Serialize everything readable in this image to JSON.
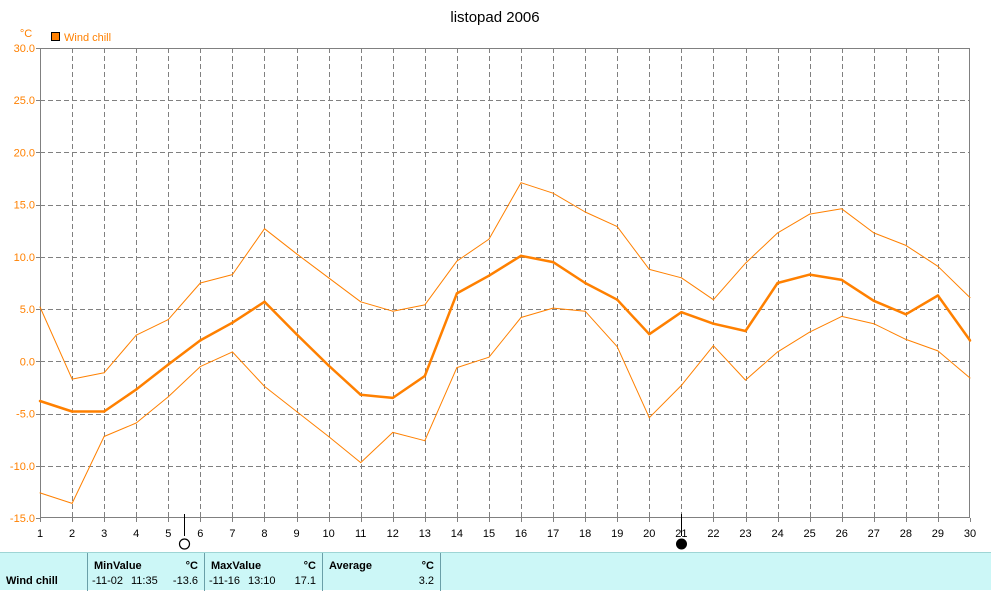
{
  "chart_data": {
    "type": "line",
    "title": "listopad 2006",
    "ylabel": "°C",
    "legend": {
      "label": "Wind chill",
      "color": "#ff8000",
      "placement": "top-left"
    },
    "grid": true,
    "xlim": [
      1,
      30
    ],
    "ylim": [
      -15,
      30
    ],
    "x_ticks": [
      1,
      2,
      3,
      4,
      5,
      6,
      7,
      8,
      9,
      10,
      11,
      12,
      13,
      14,
      15,
      16,
      17,
      18,
      19,
      20,
      21,
      22,
      23,
      24,
      25,
      26,
      27,
      28,
      29,
      30
    ],
    "y_ticks": [
      "-15.0",
      "-10.0",
      "-5.0",
      "0.0",
      "5.0",
      "10.0",
      "15.0",
      "20.0",
      "25.0",
      "30.0"
    ],
    "x": [
      1,
      2,
      3,
      4,
      5,
      6,
      7,
      8,
      9,
      10,
      11,
      12,
      13,
      14,
      15,
      16,
      17,
      18,
      19,
      20,
      21,
      22,
      23,
      24,
      25,
      26,
      27,
      28,
      29,
      30
    ],
    "series": [
      {
        "name": "Wind chill",
        "role": "max",
        "values": [
          5.2,
          -1.7,
          -1.1,
          2.5,
          4.0,
          7.5,
          8.3,
          12.7,
          10.3,
          8.0,
          5.7,
          4.8,
          5.4,
          9.6,
          11.7,
          17.1,
          16.1,
          14.3,
          12.9,
          8.8,
          8.0,
          5.9,
          9.4,
          12.3,
          14.1,
          14.6,
          12.3,
          11.1,
          9.1,
          6.1
        ]
      },
      {
        "name": "Wind chill",
        "role": "average",
        "values": [
          -3.8,
          -4.8,
          -4.8,
          -2.7,
          -0.3,
          2.0,
          3.7,
          5.7,
          2.6,
          -0.4,
          -3.2,
          -3.5,
          -1.4,
          6.5,
          8.2,
          10.1,
          9.5,
          7.5,
          5.9,
          2.6,
          4.7,
          3.6,
          2.9,
          7.5,
          8.3,
          7.8,
          5.8,
          4.5,
          6.3,
          2.0
        ]
      },
      {
        "name": "Wind chill",
        "role": "min",
        "values": [
          -12.6,
          -13.6,
          -7.2,
          -5.9,
          -3.4,
          -0.5,
          0.9,
          -2.4,
          -4.8,
          -7.2,
          -9.7,
          -6.8,
          -7.6,
          -0.6,
          0.4,
          4.2,
          5.1,
          4.8,
          1.4,
          -5.4,
          -2.3,
          1.5,
          -1.8,
          0.9,
          2.8,
          4.3,
          3.6,
          2.1,
          1.0,
          -1.6
        ]
      }
    ],
    "moon_phases": [
      {
        "day": 5.5,
        "phase": "first-quarter-moon",
        "icon": "moon-circle-icon"
      },
      {
        "day": 21,
        "phase": "new-moon",
        "icon": "moon-filled-icon"
      }
    ],
    "colors": {
      "series": "#ff8000",
      "grid": "#808080",
      "axis": "#808080",
      "tick_text": "#ff8000",
      "x_tick_text": "#000000",
      "title": "#000000"
    }
  },
  "stats": {
    "series_label": "Wind chill",
    "min": {
      "header": "MinValue",
      "unit": "°C",
      "date": "-11-02",
      "time": "11:35",
      "value": "-13.6"
    },
    "max": {
      "header": "MaxValue",
      "unit": "°C",
      "date": "-11-16",
      "time": "13:10",
      "value": "17.1"
    },
    "average": {
      "header": "Average",
      "unit": "°C",
      "value": "3.2"
    },
    "background": "#ccf7f7"
  }
}
